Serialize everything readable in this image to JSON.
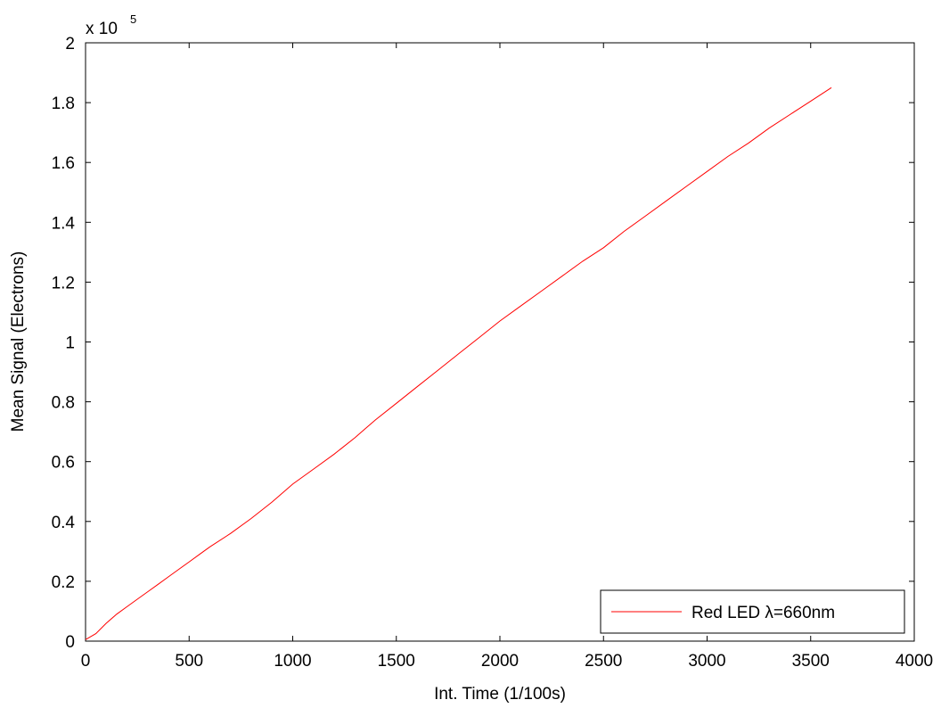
{
  "chart_data": {
    "type": "line",
    "title": "",
    "xlabel": "Int. Time (1/100s)",
    "ylabel": "Mean Signal (Electrons)",
    "xlim": [
      0,
      4000
    ],
    "ylim": [
      0,
      2
    ],
    "y_multiplier_label": "x 10",
    "y_multiplier_exponent": "5",
    "xticks": [
      "0",
      "500",
      "1000",
      "1500",
      "2000",
      "2500",
      "3000",
      "3500",
      "4000"
    ],
    "yticks": [
      "0",
      "0.2",
      "0.4",
      "0.6",
      "0.8",
      "1",
      "1.2",
      "1.4",
      "1.6",
      "1.8",
      "2"
    ],
    "grid": false,
    "legend_position": "bottom-right",
    "series": [
      {
        "name": "Red LED λ=660nm",
        "color": "#ff0000",
        "x": [
          0,
          50,
          100,
          150,
          200,
          250,
          300,
          350,
          400,
          450,
          500,
          550,
          600,
          700,
          800,
          900,
          1000,
          1100,
          1200,
          1300,
          1350,
          1400,
          1500,
          1600,
          1700,
          1800,
          1900,
          2000,
          2100,
          2200,
          2300,
          2400,
          2500,
          2600,
          2700,
          2800,
          2900,
          3000,
          3100,
          3200,
          3300,
          3400,
          3500,
          3600
        ],
        "y": [
          0.005,
          0.025,
          0.06,
          0.09,
          0.115,
          0.14,
          0.165,
          0.19,
          0.215,
          0.24,
          0.265,
          0.29,
          0.315,
          0.36,
          0.41,
          0.465,
          0.525,
          0.575,
          0.625,
          0.68,
          0.71,
          0.74,
          0.795,
          0.85,
          0.905,
          0.96,
          1.015,
          1.07,
          1.12,
          1.17,
          1.22,
          1.27,
          1.315,
          1.37,
          1.42,
          1.47,
          1.52,
          1.57,
          1.62,
          1.665,
          1.715,
          1.76,
          1.805,
          1.85
        ]
      }
    ]
  }
}
